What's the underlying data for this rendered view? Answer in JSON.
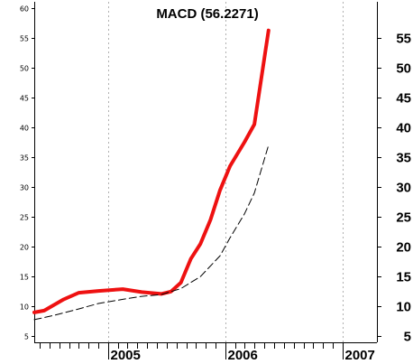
{
  "chart_data": {
    "type": "line",
    "title": "MACD (56.2271)",
    "xlabel": "",
    "ylabel": "",
    "x_ticks": [
      "2005",
      "2006",
      "2007"
    ],
    "ylim": [
      4,
      61
    ],
    "left_yticks": [
      "5",
      "10",
      "15",
      "20",
      "25",
      "30",
      "35",
      "40",
      "45",
      "50",
      "55",
      "60"
    ],
    "right_yticks": [
      "5",
      "10",
      "15",
      "20",
      "25",
      "30",
      "35",
      "40",
      "45",
      "50",
      "55"
    ],
    "grid": "vertical-dashed-at-years",
    "colors": {
      "macd": "#ee1111",
      "signal": "#000000"
    },
    "series": [
      {
        "style": "solid-thick",
        "x": [
          "2004-05-15",
          "2004-06-15",
          "2004-08-15",
          "2004-10-01",
          "2004-12-01",
          "2005-02-15",
          "2005-04-15",
          "2005-06-15",
          "2005-07-15",
          "2005-08-15",
          "2005-09-15",
          "2005-10-15",
          "2005-11-15",
          "2005-12-15",
          "2006-01-15",
          "2006-03-01",
          "2006-04-01",
          "2006-05-15"
        ],
        "values": [
          9.0,
          9.3,
          11.2,
          12.3,
          12.6,
          12.9,
          12.4,
          12.1,
          12.5,
          14.0,
          18.0,
          20.5,
          24.5,
          29.5,
          33.5,
          37.5,
          40.5,
          56.2
        ]
      },
      {
        "style": "dashed-thin",
        "x": [
          "2004-05-15",
          "2004-07-15",
          "2004-10-01",
          "2004-12-01",
          "2005-02-15",
          "2005-04-15",
          "2005-06-15",
          "2005-08-15",
          "2005-10-15",
          "2005-12-15",
          "2006-01-15",
          "2006-03-01",
          "2006-04-01",
          "2006-05-15"
        ],
        "values": [
          7.8,
          8.5,
          9.6,
          10.5,
          11.2,
          11.7,
          12.0,
          13.0,
          15.0,
          18.5,
          21.5,
          25.5,
          29.0,
          37.0
        ]
      }
    ]
  }
}
